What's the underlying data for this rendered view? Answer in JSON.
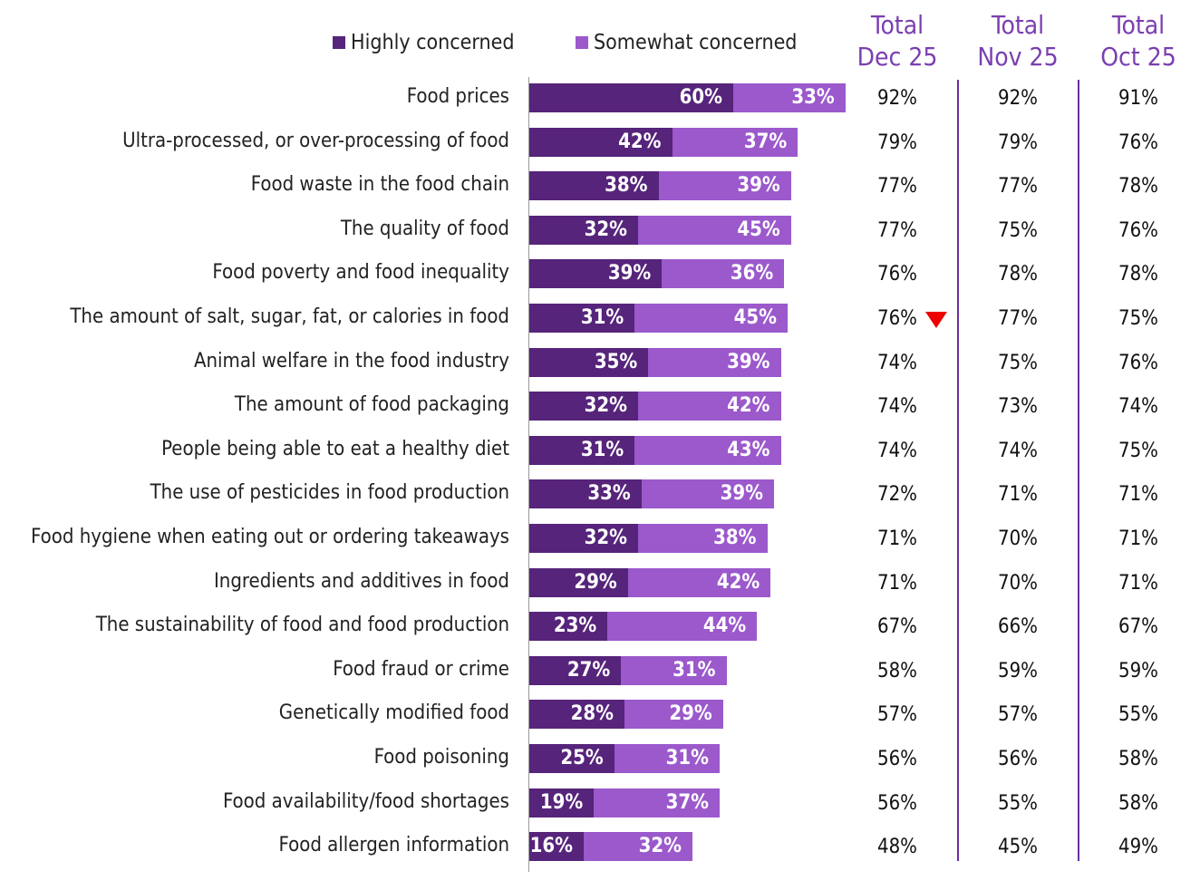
{
  "chart_data": {
    "type": "bar",
    "orientation": "horizontal-stacked",
    "legend": {
      "placement": "top",
      "entries": [
        "Highly concerned",
        "Somewhat concerned"
      ]
    },
    "colors": {
      "Highly concerned": "#56247a",
      "Somewhat concerned": "#9b59cc",
      "header": "#7a3fb0",
      "decrease_marker": "#e00000"
    },
    "categories": [
      "Food prices",
      "Ultra-processed, or over-processing of food",
      "Food waste in the food chain",
      "The quality of food",
      "Food poverty and food inequality",
      "The amount of salt, sugar, fat, or calories in food",
      "Animal welfare in the food industry",
      "The amount of food packaging",
      "People being able to eat a healthy diet",
      "The use of pesticides in food production",
      "Food hygiene when eating out or ordering takeaways",
      "Ingredients and additives in food",
      "The sustainability of food and food production",
      "Food fraud or crime",
      "Genetically modified food",
      "Food poisoning",
      "Food availability/food shortages",
      "Food allergen information"
    ],
    "series": [
      {
        "name": "Highly concerned",
        "values": [
          60,
          42,
          38,
          32,
          39,
          31,
          35,
          32,
          31,
          33,
          32,
          29,
          23,
          27,
          28,
          25,
          19,
          16
        ]
      },
      {
        "name": "Somewhat concerned",
        "values": [
          33,
          37,
          39,
          45,
          36,
          45,
          39,
          42,
          43,
          39,
          38,
          42,
          44,
          31,
          29,
          31,
          37,
          32
        ]
      }
    ],
    "table_columns": [
      {
        "header": [
          "Total",
          "Dec 25"
        ],
        "values": [
          92,
          79,
          77,
          77,
          76,
          76,
          74,
          74,
          74,
          72,
          71,
          71,
          67,
          58,
          57,
          56,
          56,
          48
        ]
      },
      {
        "header": [
          "Total",
          "Nov 25"
        ],
        "values": [
          92,
          79,
          77,
          75,
          78,
          77,
          75,
          73,
          74,
          71,
          70,
          70,
          66,
          59,
          57,
          56,
          55,
          45
        ]
      },
      {
        "header": [
          "Total",
          "Oct 25"
        ],
        "values": [
          91,
          76,
          78,
          76,
          78,
          75,
          76,
          74,
          75,
          71,
          71,
          71,
          67,
          59,
          55,
          58,
          58,
          49
        ]
      }
    ],
    "annotations": [
      {
        "category": "The amount of salt, sugar, fat, or calories in food",
        "column": "Total Dec 25",
        "marker": "down-triangle-red"
      }
    ],
    "value_suffix": "%"
  }
}
